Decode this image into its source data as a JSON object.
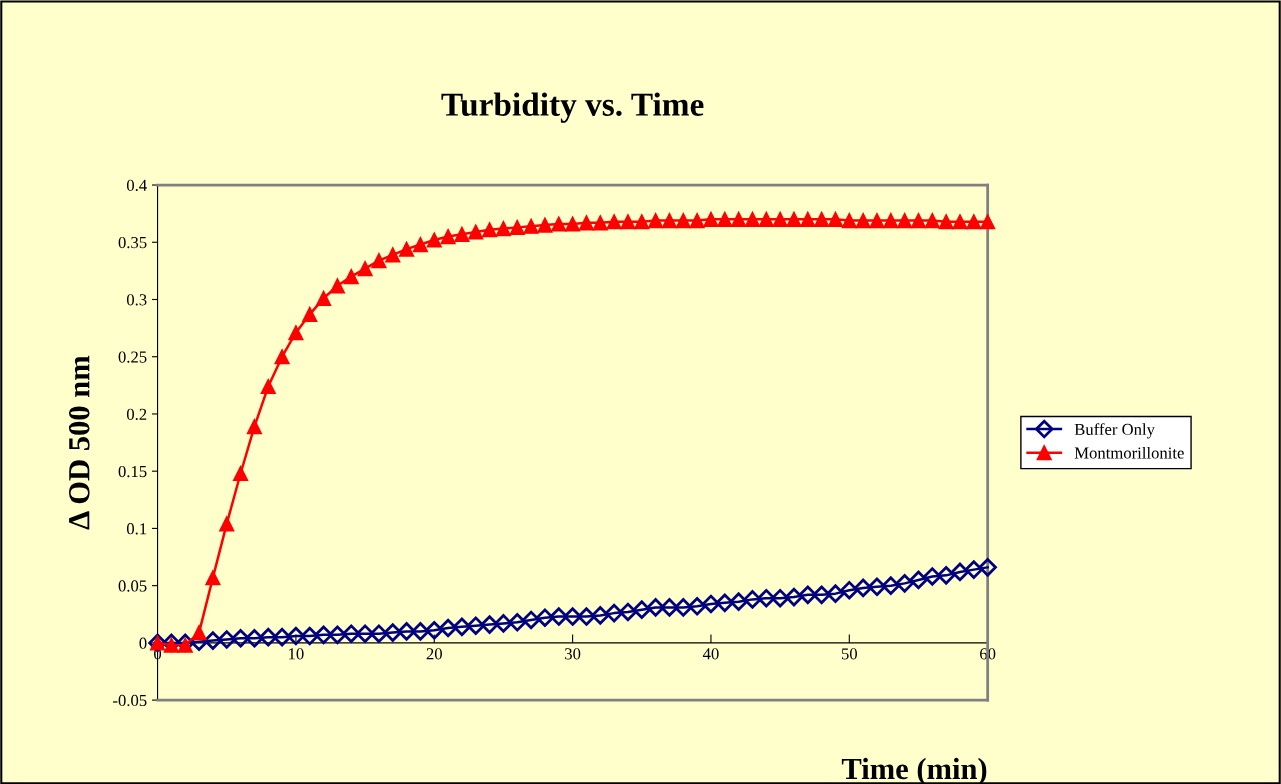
{
  "chart_data": {
    "type": "line",
    "title": "Turbidity vs. Time",
    "xlabel": "Time (min)",
    "ylabel": "Δ OD 500 nm",
    "x": [
      0,
      1,
      2,
      3,
      4,
      5,
      6,
      7,
      8,
      9,
      10,
      11,
      12,
      13,
      14,
      15,
      16,
      17,
      18,
      19,
      20,
      21,
      22,
      23,
      24,
      25,
      26,
      27,
      28,
      29,
      30,
      31,
      32,
      33,
      34,
      35,
      36,
      37,
      38,
      39,
      40,
      41,
      42,
      43,
      44,
      45,
      46,
      47,
      48,
      49,
      50,
      51,
      52,
      53,
      54,
      55,
      56,
      57,
      58,
      59,
      60
    ],
    "series": [
      {
        "name": "Buffer Only",
        "color": "#000080",
        "marker": "diamond",
        "values": [
          0,
          0,
          0,
          0.001,
          0.002,
          0.003,
          0.004,
          0.004,
          0.005,
          0.005,
          0.006,
          0.006,
          0.007,
          0.007,
          0.008,
          0.008,
          0.008,
          0.009,
          0.01,
          0.01,
          0.011,
          0.013,
          0.014,
          0.015,
          0.016,
          0.017,
          0.018,
          0.02,
          0.022,
          0.023,
          0.023,
          0.023,
          0.024,
          0.026,
          0.027,
          0.029,
          0.031,
          0.031,
          0.031,
          0.032,
          0.034,
          0.035,
          0.036,
          0.038,
          0.039,
          0.039,
          0.04,
          0.042,
          0.042,
          0.043,
          0.046,
          0.048,
          0.049,
          0.05,
          0.052,
          0.055,
          0.058,
          0.059,
          0.062,
          0.064,
          0.066
        ]
      },
      {
        "name": "Montmorillonite",
        "color": "#ff0000",
        "marker": "triangle",
        "values": [
          0,
          -0.002,
          -0.002,
          0.009,
          0.057,
          0.104,
          0.148,
          0.189,
          0.224,
          0.25,
          0.271,
          0.287,
          0.301,
          0.312,
          0.32,
          0.327,
          0.334,
          0.339,
          0.344,
          0.348,
          0.352,
          0.355,
          0.357,
          0.359,
          0.361,
          0.362,
          0.363,
          0.364,
          0.365,
          0.366,
          0.366,
          0.367,
          0.367,
          0.368,
          0.368,
          0.368,
          0.369,
          0.369,
          0.369,
          0.369,
          0.37,
          0.37,
          0.37,
          0.37,
          0.37,
          0.37,
          0.37,
          0.37,
          0.37,
          0.37,
          0.369,
          0.369,
          0.369,
          0.369,
          0.369,
          0.369,
          0.369,
          0.368,
          0.368,
          0.368,
          0.368
        ]
      }
    ],
    "xlim": [
      0,
      60
    ],
    "xticks": [
      0,
      10,
      20,
      30,
      40,
      50,
      60
    ],
    "ylim": [
      -0.05,
      0.4
    ],
    "yticks": [
      -0.05,
      0,
      0.05,
      0.1,
      0.15,
      0.2,
      0.25,
      0.3,
      0.35,
      0.4
    ],
    "grid": false,
    "legend": "right",
    "line_style": "solid"
  }
}
